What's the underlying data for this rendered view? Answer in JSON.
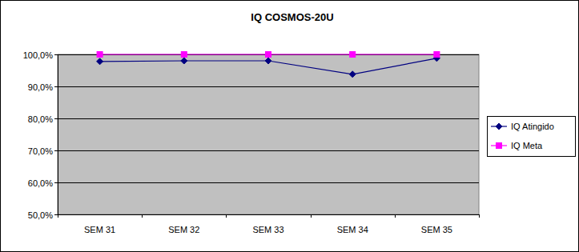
{
  "chart_data": {
    "type": "line",
    "title": "IQ COSMOS-20U",
    "categories": [
      "SEM 31",
      "SEM 32",
      "SEM 33",
      "SEM 34",
      "SEM 35"
    ],
    "series": [
      {
        "name": "IQ Atingido",
        "color": "#000080",
        "marker": "diamond",
        "values": [
          97.8,
          98.0,
          98.0,
          93.8,
          98.8
        ]
      },
      {
        "name": "IQ Meta",
        "color": "#ff00ff",
        "marker": "square",
        "values": [
          100,
          100,
          100,
          100,
          100
        ]
      }
    ],
    "ylim": [
      50,
      100
    ],
    "yticks": [
      {
        "value": 50,
        "label": "50,0%"
      },
      {
        "value": 60,
        "label": "60,0%"
      },
      {
        "value": 70,
        "label": "70,0%"
      },
      {
        "value": 80,
        "label": "80,0%"
      },
      {
        "value": 90,
        "label": "90,0%"
      },
      {
        "value": 100,
        "label": "100,0%"
      }
    ],
    "grid": true,
    "legend": "right"
  }
}
